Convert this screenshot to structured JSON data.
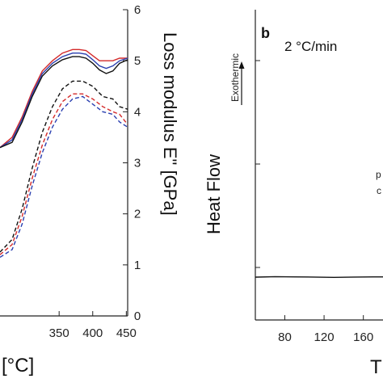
{
  "chart_data": [
    {
      "type": "line",
      "xlabel": "[°C]",
      "ylabel": "Loss modulus E\" [GPa]",
      "xlim": [
        262,
        452
      ],
      "ylim": [
        0,
        6
      ],
      "x_ticks": [
        "350",
        "400",
        "450"
      ],
      "y_ticks": [
        "0",
        "1",
        "2",
        "3",
        "4",
        "5",
        "6"
      ],
      "series": [
        {
          "color": "#d42a2a",
          "style": "solid",
          "x": [
            262,
            280,
            295,
            310,
            325,
            340,
            355,
            370,
            380,
            390,
            400,
            410,
            420,
            430,
            440,
            452
          ],
          "y": [
            3.3,
            3.5,
            3.9,
            4.4,
            4.8,
            5.0,
            5.15,
            5.22,
            5.22,
            5.2,
            5.1,
            5.0,
            5.0,
            5.0,
            5.05,
            5.05
          ]
        },
        {
          "color": "#2a3fb0",
          "style": "solid",
          "x": [
            262,
            280,
            295,
            310,
            325,
            340,
            355,
            370,
            380,
            390,
            400,
            410,
            420,
            430,
            440,
            452
          ],
          "y": [
            3.3,
            3.45,
            3.85,
            4.35,
            4.75,
            4.95,
            5.08,
            5.15,
            5.15,
            5.13,
            5.02,
            4.9,
            4.85,
            4.9,
            5.0,
            5.05
          ]
        },
        {
          "color": "#111111",
          "style": "solid",
          "x": [
            262,
            280,
            295,
            310,
            325,
            340,
            355,
            370,
            380,
            390,
            400,
            410,
            420,
            430,
            440,
            452
          ],
          "y": [
            3.3,
            3.4,
            3.8,
            4.3,
            4.7,
            4.9,
            5.02,
            5.08,
            5.08,
            5.05,
            4.95,
            4.82,
            4.75,
            4.8,
            4.95,
            5.02
          ]
        },
        {
          "color": "#111111",
          "style": "dashed",
          "x": [
            262,
            280,
            295,
            310,
            325,
            340,
            355,
            370,
            385,
            400,
            415,
            430,
            440,
            452
          ],
          "y": [
            1.25,
            1.5,
            2.1,
            2.9,
            3.6,
            4.1,
            4.45,
            4.6,
            4.6,
            4.5,
            4.3,
            4.25,
            4.1,
            4.05
          ]
        },
        {
          "color": "#d42a2a",
          "style": "dashed",
          "x": [
            262,
            280,
            295,
            310,
            325,
            340,
            355,
            370,
            385,
            400,
            415,
            430,
            440,
            452
          ],
          "y": [
            1.2,
            1.4,
            1.95,
            2.7,
            3.35,
            3.85,
            4.2,
            4.35,
            4.35,
            4.25,
            4.1,
            4.0,
            3.95,
            3.75
          ]
        },
        {
          "color": "#2a3fb0",
          "style": "dashed",
          "x": [
            262,
            280,
            295,
            310,
            325,
            340,
            355,
            370,
            385,
            400,
            415,
            430,
            440,
            452
          ],
          "y": [
            1.15,
            1.3,
            1.8,
            2.55,
            3.2,
            3.7,
            4.05,
            4.25,
            4.3,
            4.15,
            4.0,
            3.95,
            3.8,
            3.7
          ]
        }
      ]
    },
    {
      "type": "line",
      "panel_label": "b",
      "annotation": "2 °C/min",
      "arrow_label": "Exothermic",
      "ylabel": "Heat Flow",
      "xlabel": "T",
      "x_ticks": [
        "80",
        "120",
        "160"
      ],
      "xlim": [
        50,
        180
      ],
      "cut_text": [
        "p",
        "c"
      ],
      "series": [
        {
          "color": "#111111",
          "style": "solid",
          "x": [
            50,
            70,
            90,
            110,
            130,
            150,
            170,
            180
          ],
          "y": [
            0,
            0.2,
            0.1,
            0.05,
            -0.1,
            0.05,
            0.1,
            0.1
          ]
        }
      ]
    }
  ]
}
